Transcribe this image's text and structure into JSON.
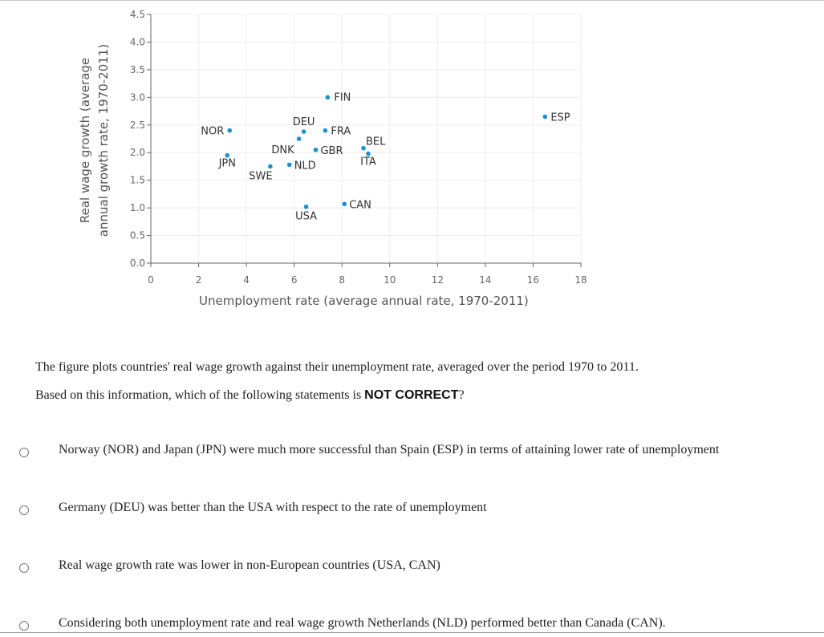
{
  "chart_data": {
    "type": "scatter",
    "xlabel": "Unemployment rate (average annual rate, 1970-2011)",
    "ylabel_line1": "Real wage growth (average",
    "ylabel_line2": "annual growth rate, 1970-2011)",
    "xlim": [
      0,
      18
    ],
    "ylim": [
      0,
      4.5
    ],
    "xticks": [
      "0",
      "2",
      "4",
      "6",
      "8",
      "10",
      "12",
      "14",
      "16",
      "18"
    ],
    "yticks": [
      "0.0",
      "0.5",
      "1.0",
      "1.5",
      "2.0",
      "2.5",
      "3.0",
      "3.5",
      "4.0",
      "4.5"
    ],
    "grid": true,
    "point_color": "#1a8fd6",
    "points": [
      {
        "label": "NOR",
        "x": 3.3,
        "y": 2.4
      },
      {
        "label": "JPN",
        "x": 3.2,
        "y": 1.95
      },
      {
        "label": "SWE",
        "x": 5.0,
        "y": 1.75
      },
      {
        "label": "DEU",
        "x": 6.4,
        "y": 2.38
      },
      {
        "label": "DNK",
        "x": 6.2,
        "y": 2.25
      },
      {
        "label": "FIN",
        "x": 7.4,
        "y": 3.0
      },
      {
        "label": "FRA",
        "x": 7.3,
        "y": 2.4
      },
      {
        "label": "GBR",
        "x": 6.9,
        "y": 2.05
      },
      {
        "label": "NLD",
        "x": 5.8,
        "y": 1.78
      },
      {
        "label": "BEL",
        "x": 8.9,
        "y": 2.08
      },
      {
        "label": "ITA",
        "x": 9.1,
        "y": 1.98
      },
      {
        "label": "USA",
        "x": 6.5,
        "y": 1.02
      },
      {
        "label": "CAN",
        "x": 8.1,
        "y": 1.07
      },
      {
        "label": "ESP",
        "x": 16.5,
        "y": 2.65
      }
    ]
  },
  "question": {
    "line1": "The figure plots countries' real wage growth against their unemployment rate, averaged over the period 1970 to 2011.",
    "line2_prefix": "Based on this information, which of the following statements is ",
    "line2_emphasis": "NOT CORRECT",
    "line2_suffix": "?"
  },
  "options": [
    "Norway (NOR) and Japan (JPN) were much more successful than Spain (ESP) in terms of attaining lower rate of unemployment",
    "Germany (DEU) was better than the USA with respect to the rate of unemployment",
    "Real wage growth rate was lower in non-European countries  (USA, CAN)",
    "Considering both unemployment rate and real wage growth Netherlands (NLD) performed better than Canada (CAN)."
  ]
}
